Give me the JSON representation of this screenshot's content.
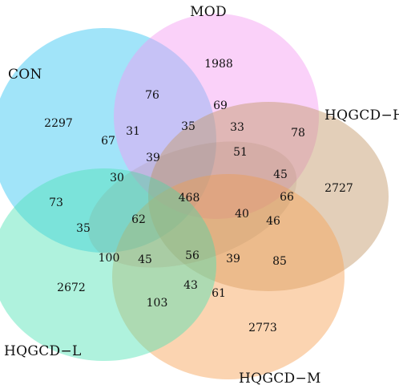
{
  "diagram": {
    "type": "five-set-venn",
    "sets": [
      {
        "key": "con",
        "name": "CON",
        "color": "#3bc6f2"
      },
      {
        "key": "mod",
        "name": "MOD",
        "color": "#f39af2"
      },
      {
        "key": "hqgcdh",
        "name": "HQGCD−H",
        "color": "#c49a6c"
      },
      {
        "key": "hqgcdm",
        "name": "HQGCD−M",
        "color": "#f7a55c"
      },
      {
        "key": "hqgcdl",
        "name": "HQGCD−L",
        "color": "#4de2b4"
      }
    ],
    "counts": [
      "1988",
      "2297",
      "2727",
      "2672",
      "2773",
      "76",
      "69",
      "31",
      "35",
      "33",
      "78",
      "67",
      "39",
      "51",
      "30",
      "45",
      "66",
      "73",
      "468",
      "40",
      "46",
      "62",
      "35",
      "100",
      "45",
      "56",
      "39",
      "85",
      "43",
      "61",
      "103"
    ]
  }
}
